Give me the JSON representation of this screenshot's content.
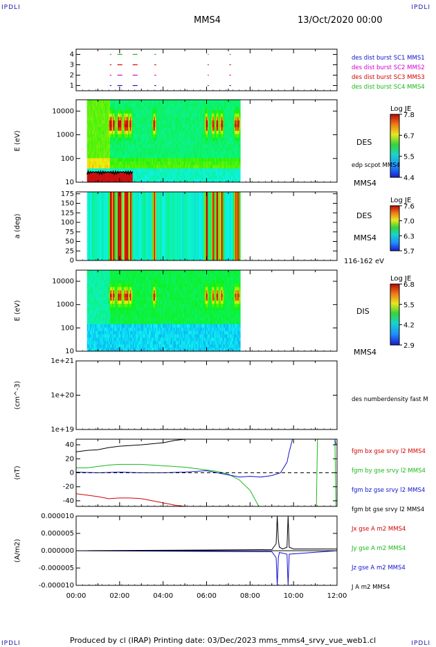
{
  "corners": {
    "tl": "IPDLI",
    "tr": "IPDLI",
    "bl": "IPDLI",
    "br": "IPDLI"
  },
  "header": {
    "spacecraft": "MMS4",
    "date": "13/Oct/2020 00:00"
  },
  "footer": {
    "text": "Produced by cl (IRAP)   Printing date: 03/Dec/2023   mms_mms4_srvy_vue_web1.cl"
  },
  "colors": {
    "red": "#d40000",
    "green": "#18b818",
    "blue": "#1010d0",
    "magenta": "#d000d0",
    "black": "#000000"
  },
  "chart_data": [
    {
      "type": "scatter",
      "panel": "burst availability",
      "yticks": [
        "1",
        "2",
        "3",
        "4"
      ],
      "ylim": [
        0.5,
        4.5
      ],
      "legend": [
        {
          "label": "des dist burst SC1 MMS1",
          "color": "#1010d0"
        },
        {
          "label": "des dist burst SC2 MMS2",
          "color": "#d000d0"
        },
        {
          "label": "des dist burst SC3 MMS3",
          "color": "#d40000"
        },
        {
          "label": "des dist burst SC4 MMS4",
          "color": "#18b818"
        }
      ],
      "burst_intervals_hours": [
        [
          1.55,
          1.62
        ],
        [
          1.9,
          2.25
        ],
        [
          2.6,
          2.85
        ],
        [
          3.6,
          3.68
        ],
        [
          6.05,
          6.1
        ],
        [
          7.05,
          7.12
        ]
      ]
    },
    {
      "type": "heatmap",
      "panel": "DES energy spectrogram",
      "ylabel": "E (eV)",
      "yticks": [
        "10",
        "100",
        "1000",
        "10000"
      ],
      "yscale": "log",
      "ylim": [
        10,
        30000
      ],
      "right_labels": [
        "DES",
        "edp scpot MMS4",
        "MMS4"
      ],
      "colorbar": {
        "title": "Log JE",
        "ticks": [
          "7.8",
          "6.7",
          "5.5",
          "4.4"
        ],
        "min": 4.4,
        "max": 7.8
      },
      "data_extent_hours": [
        0.5,
        7.55
      ],
      "overlay": {
        "label": "edp scpot MMS4",
        "approx_value_V": 25
      }
    },
    {
      "type": "heatmap",
      "panel": "DES pitch angle",
      "ylabel": "a (deg)",
      "yticks": [
        "0",
        "25",
        "50",
        "75",
        "100",
        "125",
        "150",
        "175"
      ],
      "ylim": [
        0,
        180
      ],
      "right_labels": [
        "DES",
        "MMS4",
        "116-162 eV"
      ],
      "colorbar": {
        "title": "Log JE",
        "ticks": [
          "7.6",
          "7.0",
          "6.3",
          "5.7"
        ],
        "min": 5.7,
        "max": 7.6
      },
      "data_extent_hours": [
        0.5,
        7.55
      ]
    },
    {
      "type": "heatmap",
      "panel": "DIS energy spectrogram",
      "ylabel": "E (eV)",
      "yticks": [
        "10",
        "100",
        "1000",
        "10000"
      ],
      "yscale": "log",
      "ylim": [
        10,
        30000
      ],
      "right_labels": [
        "DIS",
        "MMS4"
      ],
      "colorbar": {
        "title": "Log JE",
        "ticks": [
          "6.8",
          "5.5",
          "4.2",
          "2.9"
        ],
        "min": 2.9,
        "max": 6.8
      },
      "data_extent_hours": [
        0.5,
        7.55
      ]
    },
    {
      "type": "line",
      "panel": "density",
      "ylabel": "(cm^-3)",
      "yticks": [
        "1e+19",
        "1e+20",
        "1e+21"
      ],
      "yscale": "log",
      "ylim": [
        1e+19,
        1e+21
      ],
      "legend": [
        {
          "label": "des numberdensity fast M",
          "color": "#000000"
        }
      ],
      "series": []
    },
    {
      "type": "line",
      "panel": "magnetic field",
      "ylabel": "(nT)",
      "yticks": [
        "-40",
        "-20",
        "0",
        "20",
        "40"
      ],
      "ylim": [
        -48,
        48
      ],
      "legend": [
        {
          "label": "fgm bx gse srvy l2 MMS4",
          "color": "#d40000"
        },
        {
          "label": "fgm by gse srvy l2 MMS4",
          "color": "#18b818"
        },
        {
          "label": "fgm bz gse srvy l2 MMS4",
          "color": "#1010d0"
        },
        {
          "label": "fgm bt gse srvy l2 MMS4",
          "color": "#000000"
        }
      ],
      "series": [
        {
          "name": "bx",
          "color": "#d40000",
          "x": [
            0,
            0.5,
            1.0,
            1.5,
            2.0,
            2.5,
            3.0,
            3.5,
            4.0,
            4.5,
            5.0
          ],
          "y": [
            -30,
            -32,
            -34,
            -37,
            -36,
            -36,
            -37,
            -40,
            -43,
            -46,
            -48
          ]
        },
        {
          "name": "by",
          "color": "#18b818",
          "x": [
            0,
            0.5,
            1.0,
            1.5,
            2.0,
            3.0,
            4.0,
            5.0,
            6.0,
            6.5,
            7.0,
            7.5,
            8.0,
            8.4,
            11.05,
            11.1,
            11.9,
            11.95
          ],
          "y": [
            7,
            7,
            9,
            11,
            12,
            12,
            10,
            8,
            4,
            2,
            -2,
            -10,
            -25,
            -48,
            -48,
            48,
            48,
            -48
          ]
        },
        {
          "name": "bz",
          "color": "#1010d0",
          "x": [
            0,
            1,
            2,
            3,
            4,
            5,
            6,
            6.5,
            7,
            7.5,
            8,
            8.5,
            9.0,
            9.4,
            9.7,
            9.8,
            9.95,
            11.9,
            11.95
          ],
          "y": [
            1,
            0,
            1,
            0,
            0,
            1,
            3,
            0,
            -3,
            -6,
            -5,
            -6,
            -4,
            0,
            15,
            30,
            48,
            48,
            40
          ]
        },
        {
          "name": "bt",
          "color": "#000000",
          "x": [
            0,
            0.5,
            1.0,
            1.5,
            2.0,
            3.0,
            4.0,
            4.5,
            5.0
          ],
          "y": [
            30,
            32,
            33,
            36,
            38,
            40,
            43,
            46,
            48
          ]
        }
      ],
      "reference_line": 0
    },
    {
      "type": "line",
      "panel": "current density",
      "ylabel": "(A/m2)",
      "yticks": [
        "-0.000010",
        "-0.000005",
        "0.000000",
        "0.000005",
        "0.000010"
      ],
      "ylim": [
        -1e-05,
        1e-05
      ],
      "legend": [
        {
          "label": "Jx gse A m2 MMS4",
          "color": "#d40000"
        },
        {
          "label": "Jy gse A m2 MMS4",
          "color": "#18b818"
        },
        {
          "label": "Jz gse A m2 MMS4",
          "color": "#1010d0"
        },
        {
          "label": "J A m2 MMS4",
          "color": "#000000"
        }
      ],
      "series": [
        {
          "name": "J",
          "color": "#000000",
          "x": [
            0,
            9.0,
            9.2,
            9.25,
            9.3,
            9.35,
            9.5,
            9.7,
            9.75,
            9.8,
            10.0,
            12.0
          ],
          "y": [
            0,
            3e-07,
            2e-06,
            1e-05,
            3e-06,
            1e-06,
            5e-07,
            1e-06,
            1e-05,
            1e-06,
            5e-07,
            5e-07
          ]
        },
        {
          "name": "Jz",
          "color": "#1010d0",
          "x": [
            0,
            9.0,
            9.2,
            9.25,
            9.3,
            9.35,
            9.7,
            9.75,
            9.8,
            12.0
          ],
          "y": [
            0,
            -3e-07,
            -2e-06,
            -1e-05,
            -2e-06,
            -5e-07,
            -1e-06,
            -1e-05,
            -1e-06,
            0
          ]
        }
      ]
    }
  ],
  "xaxis": {
    "ticks": [
      "00:00",
      "02:00",
      "04:00",
      "06:00",
      "08:00",
      "10:00",
      "12:00"
    ],
    "range_hours": [
      0,
      12
    ]
  }
}
